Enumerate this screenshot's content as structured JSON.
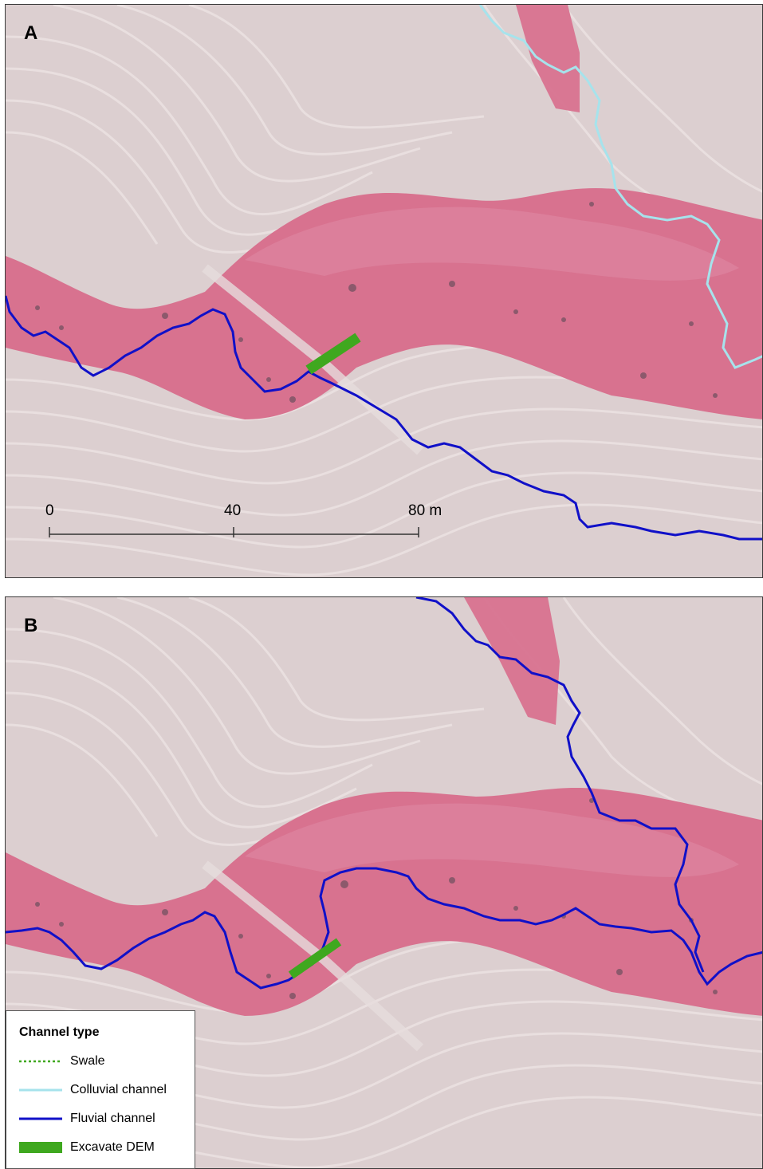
{
  "panels": [
    {
      "label": "A"
    },
    {
      "label": "B"
    }
  ],
  "scalebar": {
    "ticks": [
      "0",
      "40",
      "80 m"
    ]
  },
  "legend": {
    "title": "Channel type",
    "items": [
      {
        "label": "Swale",
        "color": "#3fa81f",
        "style": "dotted"
      },
      {
        "label": "Colluvial channel",
        "color": "#a6e3ec",
        "style": "solid"
      },
      {
        "label": "Fluvial channel",
        "color": "#1010c8",
        "style": "solid"
      },
      {
        "label": "Excavate DEM",
        "color": "#3fa81f",
        "style": "thick"
      }
    ]
  },
  "colors": {
    "terrain": "#dccfd0",
    "vegetation": "#d8728f",
    "vegetation_light": "#e08aa6",
    "colluvial": "#a6e3ec",
    "fluvial": "#1010c8",
    "excavate": "#3fa81f"
  }
}
